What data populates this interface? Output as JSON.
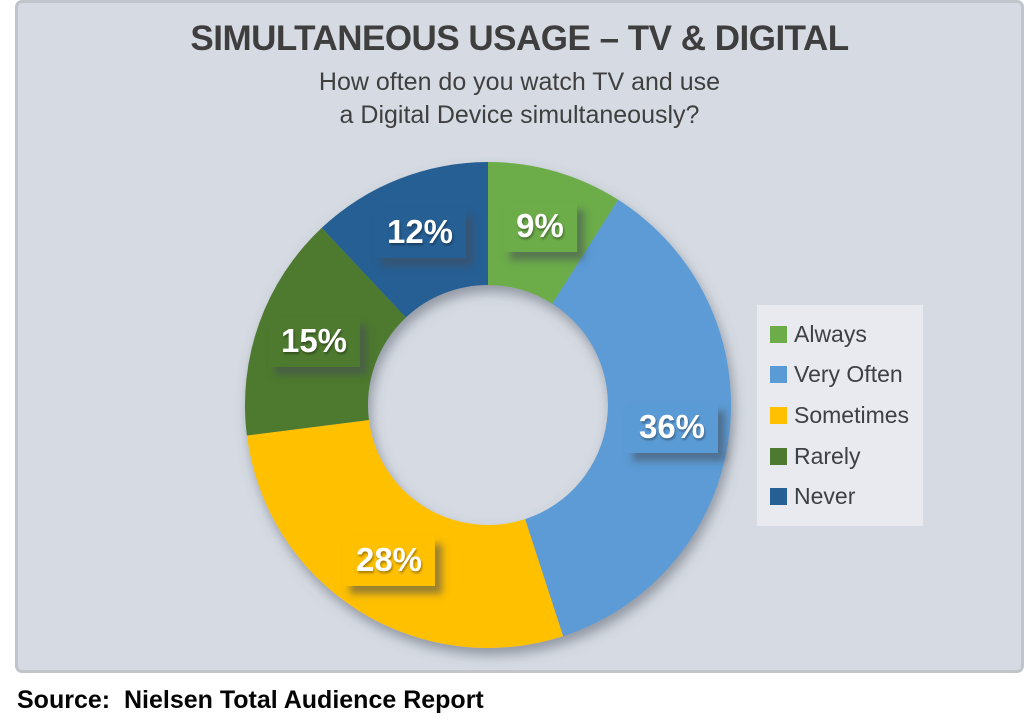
{
  "figure": {
    "title": "SIMULTANEOUS USAGE – TV & DIGITAL",
    "subtitle_line1": "How often do you watch TV and use",
    "subtitle_line2": "a Digital Device simultaneously?",
    "source": "Source:  Nielsen Total Audience Report"
  },
  "chart_data": {
    "type": "pie",
    "style": "donut",
    "title": "SIMULTANEOUS USAGE – TV & DIGITAL",
    "question": "How often do you watch TV and use a Digital Device simultaneously?",
    "categories": [
      "Always",
      "Very Often",
      "Sometimes",
      "Rarely",
      "Never"
    ],
    "values": [
      9,
      36,
      28,
      15,
      12
    ],
    "unit": "%",
    "data_labels": [
      "9%",
      "36%",
      "28%",
      "15%",
      "12%"
    ],
    "colors": [
      "#6CAC49",
      "#5B9BD5",
      "#FFC000",
      "#4D7A2E",
      "#265F94"
    ],
    "start_angle_deg": 0,
    "direction": "clockwise",
    "inner_radius_ratio": 0.49,
    "legend_position": "right",
    "source": "Nielsen Total Audience Report"
  },
  "colors": {
    "panel_background": "#D6DBE3",
    "panel_border": "#C1C5CB",
    "legend_background": "#E8EAEF",
    "legend_text": "#3D4045",
    "title_text": "#3E3E3E",
    "label_text": "#FFFFFF",
    "source_text": "#050505"
  }
}
